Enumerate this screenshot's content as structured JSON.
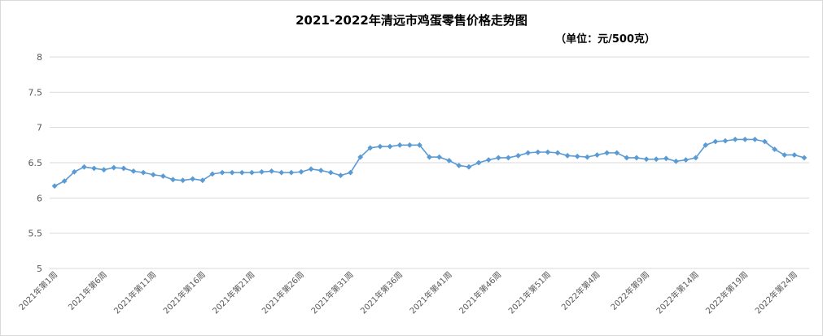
{
  "chart_data": {
    "type": "line",
    "title": "2021-2022年清远市鸡蛋零售价格走势图",
    "subtitle": "（单位：元/500克）",
    "ylim": [
      5,
      8
    ],
    "yticks": [
      "5",
      "5.5",
      "6",
      "6.5",
      "7",
      "7.5",
      "8"
    ],
    "grid": true,
    "legend": "none",
    "line_color": "#5b9bd5",
    "x_tick_labels": [
      "2021年第1周",
      "2021年第6周",
      "2021年第11周",
      "2021年第16周",
      "2021年第21周",
      "2021年第26周",
      "2021年第31周",
      "2021年第36周",
      "2021年第41周",
      "2021年第46周",
      "2021年第51周",
      "2022年第4周",
      "2022年第9周",
      "2022年第14周",
      "2022年第19周",
      "2022年第24周"
    ],
    "values": [
      6.17,
      6.24,
      6.37,
      6.44,
      6.42,
      6.4,
      6.43,
      6.42,
      6.38,
      6.36,
      6.33,
      6.31,
      6.26,
      6.25,
      6.27,
      6.25,
      6.34,
      6.36,
      6.36,
      6.36,
      6.36,
      6.37,
      6.38,
      6.36,
      6.36,
      6.37,
      6.41,
      6.39,
      6.36,
      6.32,
      6.36,
      6.58,
      6.71,
      6.73,
      6.73,
      6.75,
      6.75,
      6.75,
      6.58,
      6.58,
      6.53,
      6.46,
      6.44,
      6.5,
      6.54,
      6.57,
      6.57,
      6.6,
      6.64,
      6.65,
      6.65,
      6.64,
      6.6,
      6.59,
      6.58,
      6.61,
      6.64,
      6.64,
      6.57,
      6.57,
      6.55,
      6.55,
      6.56,
      6.52,
      6.54,
      6.57,
      6.75,
      6.8,
      6.81,
      6.83,
      6.83,
      6.83,
      6.8,
      6.69,
      6.61,
      6.61,
      6.57
    ]
  }
}
